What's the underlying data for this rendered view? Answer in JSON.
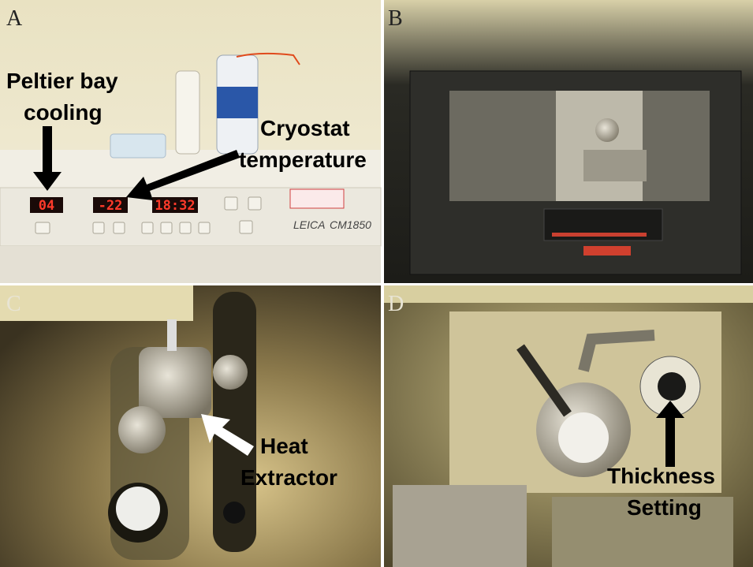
{
  "panels": [
    {
      "label": "A",
      "annotations": [
        {
          "lines": [
            "Peltier bay",
            "cooling"
          ]
        },
        {
          "lines": [
            "Cryostat",
            "temperature"
          ]
        }
      ],
      "displays": [
        "04",
        "-22",
        "18:32"
      ],
      "brand": "LEICA",
      "model": "CM1850"
    },
    {
      "label": "B"
    },
    {
      "label": "C",
      "annotations": [
        {
          "lines": [
            "Heat",
            "Extractor"
          ]
        }
      ]
    },
    {
      "label": "D",
      "annotations": [
        {
          "lines": [
            "Thickness",
            "Setting"
          ]
        }
      ]
    }
  ]
}
